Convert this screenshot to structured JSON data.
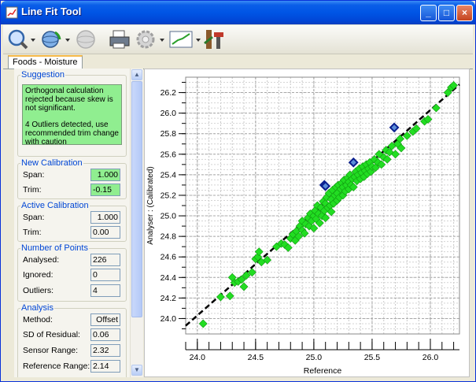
{
  "window": {
    "title": "Line Fit Tool",
    "minimize": "_",
    "maximize": "□",
    "close": "×"
  },
  "tabs": [
    {
      "label": "Foods - Moisture",
      "active": true
    }
  ],
  "suggestion": {
    "legend": "Suggestion",
    "line1": "Orthogonal calculation rejected because skew is not significant.",
    "line2": "4 Outliers detected, use recommended trim change with caution"
  },
  "new_calibration": {
    "legend": "New Calibration",
    "span_label": "Span:",
    "span_value": "1.000",
    "trim_label": "Trim:",
    "trim_value": "-0.15"
  },
  "active_calibration": {
    "legend": "Active Calibration",
    "span_label": "Span:",
    "span_value": "1.000",
    "trim_label": "Trim:",
    "trim_value": "0.00"
  },
  "number_of_points": {
    "legend": "Number of Points",
    "analysed_label": "Analysed:",
    "analysed_value": "226",
    "ignored_label": "Ignored:",
    "ignored_value": "0",
    "outliers_label": "Outliers:",
    "outliers_value": "4"
  },
  "analysis": {
    "legend": "Analysis",
    "method_label": "Method:",
    "method_value": "Offset",
    "sd_label": "SD of Residual:",
    "sd_value": "0.06",
    "sensor_label": "Sensor Range:",
    "sensor_value": "2.32",
    "reference_label": "Reference Range:",
    "reference_value": "2.14"
  },
  "chart_data": {
    "type": "scatter",
    "xlabel": "Reference",
    "ylabel": "Analyser : (Calibrated)",
    "xlim": [
      23.9,
      26.25
    ],
    "ylim": [
      23.85,
      26.35
    ],
    "x_ticks": [
      "24.0",
      "24.5",
      "25.0",
      "25.5",
      "26.0"
    ],
    "y_ticks": [
      "24.0",
      "24.2",
      "24.4",
      "24.6",
      "24.8",
      "25.0",
      "25.2",
      "25.4",
      "25.6",
      "25.8",
      "26.0",
      "26.2"
    ],
    "grid": true,
    "marker_color": "#22dd22",
    "outlier_color": "#0a1f8f",
    "fit_line": {
      "x": [
        23.9,
        26.25
      ],
      "y": [
        23.93,
        26.28
      ],
      "style": "dashed"
    },
    "outliers": [
      {
        "x": 25.09,
        "y": 25.3
      },
      {
        "x": 25.34,
        "y": 25.52
      },
      {
        "x": 25.69,
        "y": 25.86
      },
      {
        "x": 25.1,
        "y": 25.29
      }
    ],
    "points": [
      {
        "x": 24.05,
        "y": 23.95
      },
      {
        "x": 24.2,
        "y": 24.21
      },
      {
        "x": 24.28,
        "y": 24.22
      },
      {
        "x": 24.32,
        "y": 24.35
      },
      {
        "x": 24.3,
        "y": 24.4
      },
      {
        "x": 24.35,
        "y": 24.36
      },
      {
        "x": 24.38,
        "y": 24.38
      },
      {
        "x": 24.4,
        "y": 24.31
      },
      {
        "x": 24.42,
        "y": 24.42
      },
      {
        "x": 24.47,
        "y": 24.45
      },
      {
        "x": 24.5,
        "y": 24.58
      },
      {
        "x": 24.52,
        "y": 24.6
      },
      {
        "x": 24.53,
        "y": 24.65
      },
      {
        "x": 24.55,
        "y": 24.55
      },
      {
        "x": 24.6,
        "y": 24.57
      },
      {
        "x": 24.68,
        "y": 24.7
      },
      {
        "x": 24.72,
        "y": 24.73
      },
      {
        "x": 24.75,
        "y": 24.72
      },
      {
        "x": 24.78,
        "y": 24.69
      },
      {
        "x": 24.8,
        "y": 24.78
      },
      {
        "x": 24.82,
        "y": 24.82
      },
      {
        "x": 24.84,
        "y": 24.76
      },
      {
        "x": 24.85,
        "y": 24.85
      },
      {
        "x": 24.87,
        "y": 24.8
      },
      {
        "x": 24.88,
        "y": 24.9
      },
      {
        "x": 24.9,
        "y": 24.86
      },
      {
        "x": 24.9,
        "y": 24.95
      },
      {
        "x": 24.92,
        "y": 24.83
      },
      {
        "x": 24.93,
        "y": 24.92
      },
      {
        "x": 24.95,
        "y": 24.98
      },
      {
        "x": 24.96,
        "y": 24.9
      },
      {
        "x": 24.97,
        "y": 25.02
      },
      {
        "x": 24.98,
        "y": 24.95
      },
      {
        "x": 25.0,
        "y": 25.0
      },
      {
        "x": 25.0,
        "y": 24.88
      },
      {
        "x": 25.01,
        "y": 25.05
      },
      {
        "x": 25.02,
        "y": 24.97
      },
      {
        "x": 25.03,
        "y": 25.1
      },
      {
        "x": 25.04,
        "y": 25.02
      },
      {
        "x": 25.05,
        "y": 24.93
      },
      {
        "x": 25.06,
        "y": 25.08
      },
      {
        "x": 25.07,
        "y": 25.0
      },
      {
        "x": 25.08,
        "y": 25.14
      },
      {
        "x": 25.09,
        "y": 25.05
      },
      {
        "x": 25.1,
        "y": 25.12
      },
      {
        "x": 25.1,
        "y": 24.98
      },
      {
        "x": 25.11,
        "y": 25.18
      },
      {
        "x": 25.12,
        "y": 25.08
      },
      {
        "x": 25.13,
        "y": 25.22
      },
      {
        "x": 25.14,
        "y": 25.1
      },
      {
        "x": 25.15,
        "y": 25.16
      },
      {
        "x": 25.15,
        "y": 25.04
      },
      {
        "x": 25.16,
        "y": 25.25
      },
      {
        "x": 25.17,
        "y": 25.12
      },
      {
        "x": 25.18,
        "y": 25.2
      },
      {
        "x": 25.19,
        "y": 25.28
      },
      {
        "x": 25.2,
        "y": 25.15
      },
      {
        "x": 25.2,
        "y": 25.22
      },
      {
        "x": 25.21,
        "y": 25.3
      },
      {
        "x": 25.22,
        "y": 25.18
      },
      {
        "x": 25.23,
        "y": 25.26
      },
      {
        "x": 25.24,
        "y": 25.32
      },
      {
        "x": 25.25,
        "y": 25.2
      },
      {
        "x": 25.25,
        "y": 25.28
      },
      {
        "x": 25.26,
        "y": 25.35
      },
      {
        "x": 25.27,
        "y": 25.24
      },
      {
        "x": 25.28,
        "y": 25.3
      },
      {
        "x": 25.29,
        "y": 25.37
      },
      {
        "x": 25.3,
        "y": 25.26
      },
      {
        "x": 25.3,
        "y": 25.33
      },
      {
        "x": 25.31,
        "y": 25.4
      },
      {
        "x": 25.32,
        "y": 25.3
      },
      {
        "x": 25.33,
        "y": 25.36
      },
      {
        "x": 25.34,
        "y": 25.28
      },
      {
        "x": 25.35,
        "y": 25.38
      },
      {
        "x": 25.36,
        "y": 25.43
      },
      {
        "x": 25.37,
        "y": 25.34
      },
      {
        "x": 25.38,
        "y": 25.4
      },
      {
        "x": 25.39,
        "y": 25.46
      },
      {
        "x": 25.4,
        "y": 25.36
      },
      {
        "x": 25.41,
        "y": 25.42
      },
      {
        "x": 25.42,
        "y": 25.48
      },
      {
        "x": 25.43,
        "y": 25.38
      },
      {
        "x": 25.44,
        "y": 25.44
      },
      {
        "x": 25.45,
        "y": 25.5
      },
      {
        "x": 25.46,
        "y": 25.41
      },
      {
        "x": 25.47,
        "y": 25.46
      },
      {
        "x": 25.48,
        "y": 25.52
      },
      {
        "x": 25.49,
        "y": 25.43
      },
      {
        "x": 25.5,
        "y": 25.48
      },
      {
        "x": 25.52,
        "y": 25.55
      },
      {
        "x": 25.53,
        "y": 25.47
      },
      {
        "x": 25.55,
        "y": 25.52
      },
      {
        "x": 25.56,
        "y": 25.6
      },
      {
        "x": 25.58,
        "y": 25.5
      },
      {
        "x": 25.6,
        "y": 25.57
      },
      {
        "x": 25.62,
        "y": 25.64
      },
      {
        "x": 25.63,
        "y": 25.55
      },
      {
        "x": 25.65,
        "y": 25.62
      },
      {
        "x": 25.67,
        "y": 25.68
      },
      {
        "x": 25.7,
        "y": 25.6
      },
      {
        "x": 25.72,
        "y": 25.7
      },
      {
        "x": 25.74,
        "y": 25.75
      },
      {
        "x": 25.75,
        "y": 25.66
      },
      {
        "x": 25.8,
        "y": 25.78
      },
      {
        "x": 25.85,
        "y": 25.82
      },
      {
        "x": 25.88,
        "y": 25.85
      },
      {
        "x": 25.95,
        "y": 25.92
      },
      {
        "x": 25.98,
        "y": 25.94
      },
      {
        "x": 26.05,
        "y": 26.05
      },
      {
        "x": 26.15,
        "y": 26.2
      },
      {
        "x": 26.18,
        "y": 26.25
      },
      {
        "x": 26.2,
        "y": 26.27
      }
    ]
  }
}
